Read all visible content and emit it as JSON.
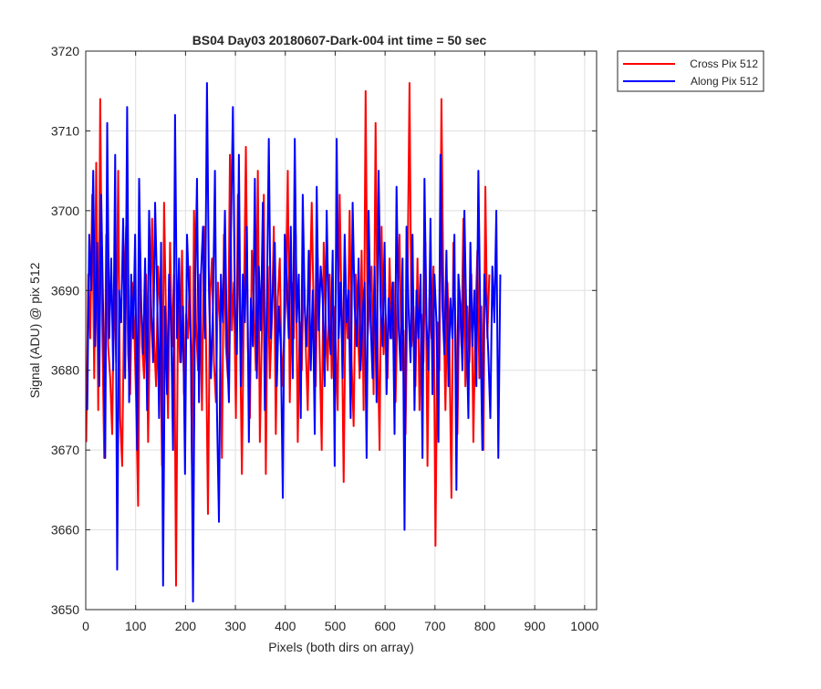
{
  "chart_data": {
    "type": "line",
    "title": "BS04 Day03 20180607-Dark-004 int time = 50 sec",
    "xlabel": "Pixels (both dirs on array)",
    "ylabel": "Signal (ADU) @ pix 512",
    "xlim": [
      0,
      1024
    ],
    "ylim": [
      3650,
      3720
    ],
    "x_ticks": [
      0,
      100,
      200,
      300,
      400,
      500,
      600,
      700,
      800,
      900,
      1000
    ],
    "y_ticks": [
      3650,
      3660,
      3670,
      3680,
      3690,
      3700,
      3710,
      3720
    ],
    "grid": true,
    "legend_position": "outside top-right",
    "series": [
      {
        "name": "Cross Pix 512",
        "color": "#ff0000",
        "x_start": 1,
        "x_step": 4,
        "values": [
          3671,
          3692,
          3684,
          3702,
          3679,
          3706,
          3675,
          3714,
          3686,
          3669,
          3697,
          3683,
          3679,
          3672,
          3692,
          3681,
          3705,
          3674,
          3668,
          3689,
          3698,
          3682,
          3677,
          3691,
          3686,
          3676,
          3663,
          3695,
          3683,
          3679,
          3692,
          3671,
          3687,
          3699,
          3684,
          3678,
          3693,
          3688,
          3668,
          3701,
          3686,
          3674,
          3696,
          3683,
          3692,
          3653,
          3689,
          3681,
          3695,
          3677,
          3687,
          3684,
          3693,
          3668,
          3700,
          3686,
          3680,
          3692,
          3675,
          3698,
          3684,
          3662,
          3689,
          3694,
          3681,
          3676,
          3691,
          3686,
          3669,
          3697,
          3683,
          3679,
          3707,
          3685,
          3691,
          3674,
          3702,
          3686,
          3667,
          3688,
          3708,
          3683,
          3674,
          3695,
          3688,
          3680,
          3705,
          3671,
          3685,
          3702,
          3667,
          3693,
          3679,
          3686,
          3698,
          3672,
          3689,
          3694,
          3678,
          3683,
          3689,
          3705,
          3676,
          3691,
          3684,
          3697,
          3671,
          3686,
          3680,
          3693,
          3683,
          3675,
          3689,
          3701,
          3687,
          3678,
          3694,
          3682,
          3670,
          3696,
          3686,
          3680,
          3692,
          3679,
          3688,
          3683,
          3675,
          3702,
          3687,
          3666,
          3690,
          3684,
          3700,
          3681,
          3673,
          3692,
          3686,
          3679,
          3695,
          3675,
          3715,
          3684,
          3689,
          3693,
          3677,
          3711,
          3684,
          3670,
          3698,
          3682,
          3687,
          3679,
          3694,
          3684,
          3691,
          3676,
          3688,
          3697,
          3680,
          3685,
          3672,
          3691,
          3716,
          3683,
          3688,
          3678,
          3694,
          3675,
          3687,
          3681,
          3696,
          3668,
          3689,
          3684,
          3693,
          3658,
          3686,
          3680,
          3714,
          3689,
          3675,
          3691,
          3683,
          3664,
          3696,
          3686,
          3672,
          3690,
          3683,
          3699,
          3678,
          3688,
          3681,
          3692,
          3671,
          3686,
          3695,
          3679,
          3688,
          3670,
          3703,
          3684,
          3692
        ]
      },
      {
        "name": "Along Pix 512",
        "color": "#0000ff",
        "x_start": 3,
        "x_step": 4,
        "values": [
          3675,
          3697,
          3690,
          3705,
          3683,
          3696,
          3678,
          3702,
          3687,
          3669,
          3711,
          3684,
          3694,
          3680,
          3707,
          3655,
          3690,
          3686,
          3699,
          3679,
          3713,
          3676,
          3692,
          3684,
          3697,
          3670,
          3704,
          3688,
          3682,
          3694,
          3675,
          3700,
          3688,
          3681,
          3701,
          3690,
          3674,
          3696,
          3653,
          3688,
          3677,
          3692,
          3686,
          3670,
          3712,
          3684,
          3694,
          3681,
          3688,
          3667,
          3697,
          3690,
          3683,
          3651,
          3689,
          3704,
          3676,
          3692,
          3698,
          3684,
          3716,
          3690,
          3679,
          3688,
          3705,
          3675,
          3661,
          3692,
          3686,
          3700,
          3683,
          3676,
          3697,
          3713,
          3688,
          3682,
          3707,
          3678,
          3692,
          3686,
          3698,
          3671,
          3689,
          3683,
          3704,
          3679,
          3693,
          3685,
          3701,
          3675,
          3688,
          3709,
          3684,
          3690,
          3696,
          3678,
          3688,
          3683,
          3664,
          3697,
          3691,
          3684,
          3698,
          3679,
          3709,
          3686,
          3692,
          3674,
          3702,
          3688,
          3683,
          3695,
          3680,
          3690,
          3672,
          3703,
          3685,
          3693,
          3689,
          3678,
          3700,
          3686,
          3682,
          3695,
          3668,
          3709,
          3684,
          3691,
          3679,
          3697,
          3686,
          3690,
          3674,
          3701,
          3688,
          3683,
          3694,
          3680,
          3687,
          3691,
          3669,
          3700,
          3686,
          3679,
          3693,
          3676,
          3705,
          3688,
          3683,
          3696,
          3677,
          3689,
          3684,
          3691,
          3672,
          3703,
          3686,
          3680,
          3694,
          3660,
          3698,
          3688,
          3681,
          3697,
          3675,
          3690,
          3684,
          3692,
          3669,
          3704,
          3686,
          3680,
          3699,
          3677,
          3692,
          3686,
          3671,
          3707,
          3688,
          3682,
          3695,
          3678,
          3689,
          3684,
          3697,
          3665,
          3692,
          3688,
          3680,
          3700,
          3686,
          3674,
          3696,
          3683,
          3690,
          3678,
          3705,
          3686,
          3670,
          3692,
          3688,
          3682,
          3674,
          3693,
          3686,
          3700,
          3669,
          3692
        ]
      }
    ]
  }
}
